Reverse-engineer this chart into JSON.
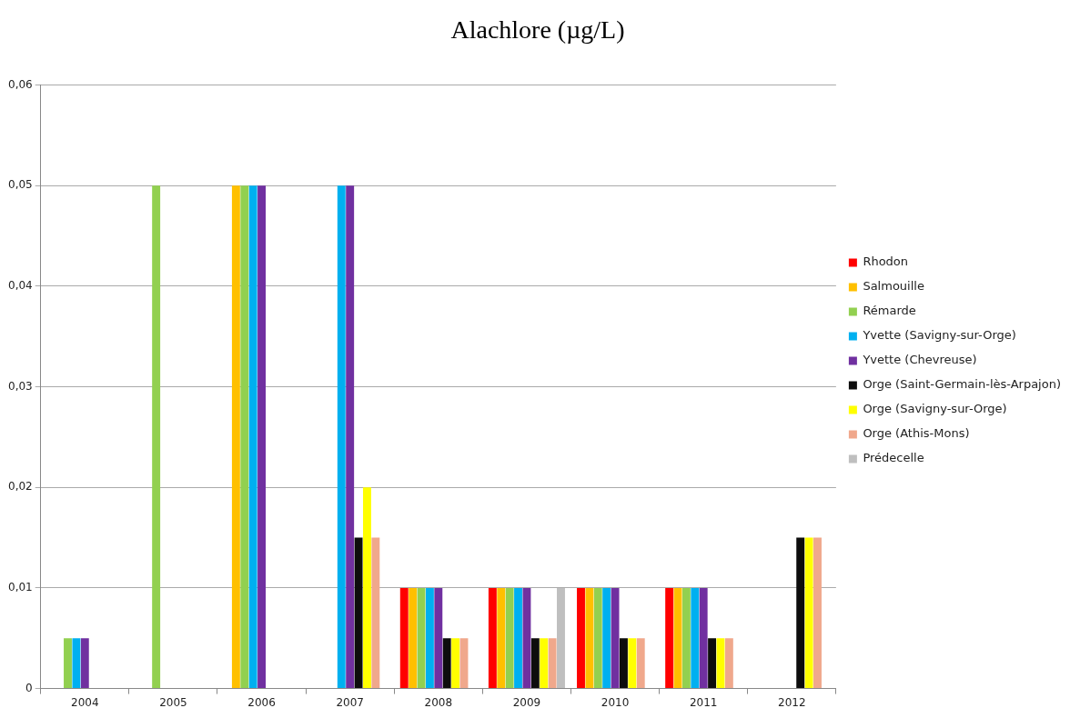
{
  "chart_data": {
    "type": "bar",
    "title": "Alachlore (µg/L)",
    "categories": [
      "2004",
      "2005",
      "2006",
      "2007",
      "2008",
      "2009",
      "2010",
      "2011",
      "2012"
    ],
    "series": [
      {
        "name": "Rhodon",
        "color": "#ff0000",
        "values": [
          null,
          null,
          null,
          null,
          0.01,
          0.01,
          0.01,
          0.01,
          null
        ]
      },
      {
        "name": "Salmouille",
        "color": "#ffc000",
        "values": [
          null,
          null,
          0.05,
          null,
          0.01,
          0.01,
          0.01,
          0.01,
          null
        ]
      },
      {
        "name": "Rémarde",
        "color": "#92d050",
        "values": [
          0.005,
          0.05,
          0.05,
          null,
          0.01,
          0.01,
          0.01,
          0.01,
          null
        ]
      },
      {
        "name": "Yvette (Savigny-sur-Orge)",
        "color": "#00b0f0",
        "values": [
          0.005,
          null,
          0.05,
          0.05,
          0.01,
          0.01,
          0.01,
          0.01,
          null
        ]
      },
      {
        "name": "Yvette (Chevreuse)",
        "color": "#7030a0",
        "values": [
          0.005,
          null,
          0.05,
          0.05,
          0.01,
          0.01,
          0.01,
          0.01,
          null
        ]
      },
      {
        "name": "Orge (Saint-Germain-lès-Arpajon)",
        "color": "#0d0d0d",
        "values": [
          null,
          null,
          null,
          0.015,
          0.005,
          0.005,
          0.005,
          0.005,
          0.015
        ]
      },
      {
        "name": "Orge (Savigny-sur-Orge)",
        "color": "#ffff00",
        "values": [
          null,
          null,
          null,
          0.02,
          0.005,
          0.005,
          0.005,
          0.005,
          0.015
        ]
      },
      {
        "name": "Orge (Athis-Mons)",
        "color": "#f0a88c",
        "values": [
          null,
          null,
          null,
          0.015,
          0.005,
          0.005,
          0.005,
          0.005,
          0.015
        ]
      },
      {
        "name": "Prédecelle",
        "color": "#bfbfbf",
        "values": [
          null,
          null,
          null,
          null,
          null,
          0.01,
          null,
          null,
          null
        ]
      }
    ],
    "ylim": [
      0,
      0.06
    ],
    "yticks": [
      0,
      {
        "value": 0.01,
        "label": "0,01"
      },
      {
        "value": 0.02,
        "label": "0,02"
      },
      {
        "value": 0.03,
        "label": "0,03"
      },
      {
        "value": 0.04,
        "label": "0,04"
      },
      {
        "value": 0.05,
        "label": "0,05"
      },
      {
        "value": 0.06,
        "label": "0,06"
      }
    ],
    "grid": "y",
    "legend": "right"
  }
}
